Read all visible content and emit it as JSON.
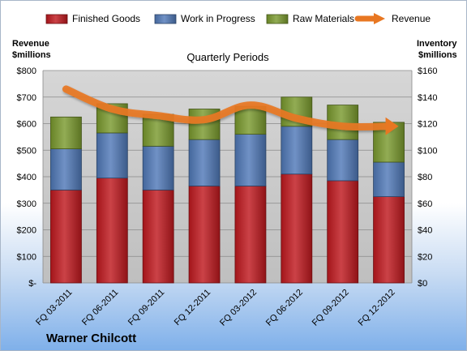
{
  "chart_data": {
    "type": "bar",
    "stacked": true,
    "title": "Quarterly Periods",
    "company": "Warner Chilcott",
    "left_axis_label": [
      "Revenue",
      "$millions"
    ],
    "right_axis_label": [
      "Inventory",
      "$millions"
    ],
    "categories": [
      "FQ 03-2011",
      "FQ 06-2011",
      "FQ 09-2011",
      "FQ 12-2011",
      "FQ 03-2012",
      "FQ 06-2012",
      "FQ 09-2012",
      "FQ 12-2012"
    ],
    "left_ticks": [
      "$-",
      "$100",
      "$200",
      "$300",
      "$400",
      "$500",
      "$600",
      "$700",
      "$800"
    ],
    "right_ticks": [
      "$0",
      "$20",
      "$40",
      "$60",
      "$80",
      "$100",
      "$120",
      "$140",
      "$160"
    ],
    "left_ylim": [
      0,
      800
    ],
    "right_ylim": [
      0,
      160
    ],
    "grid": true,
    "legend_position": "top",
    "series": [
      {
        "name": "Finished Goods",
        "axis": "right",
        "type": "bar",
        "color": "#c0191f",
        "values": [
          70,
          79,
          70,
          73,
          73,
          82,
          77,
          65
        ]
      },
      {
        "name": "Work in Progress",
        "axis": "right",
        "type": "bar",
        "color": "#5079b8",
        "values": [
          31,
          34,
          33,
          35,
          39,
          36,
          31,
          26
        ]
      },
      {
        "name": "Raw Materials",
        "axis": "right",
        "type": "bar",
        "color": "#7a9a2e",
        "values": [
          24,
          22,
          24,
          23,
          21,
          22,
          26,
          30
        ]
      },
      {
        "name": "Revenue",
        "axis": "left",
        "type": "line",
        "color": "#e87722",
        "values": [
          730,
          655,
          630,
          615,
          670,
          620,
          590,
          590
        ]
      }
    ]
  }
}
